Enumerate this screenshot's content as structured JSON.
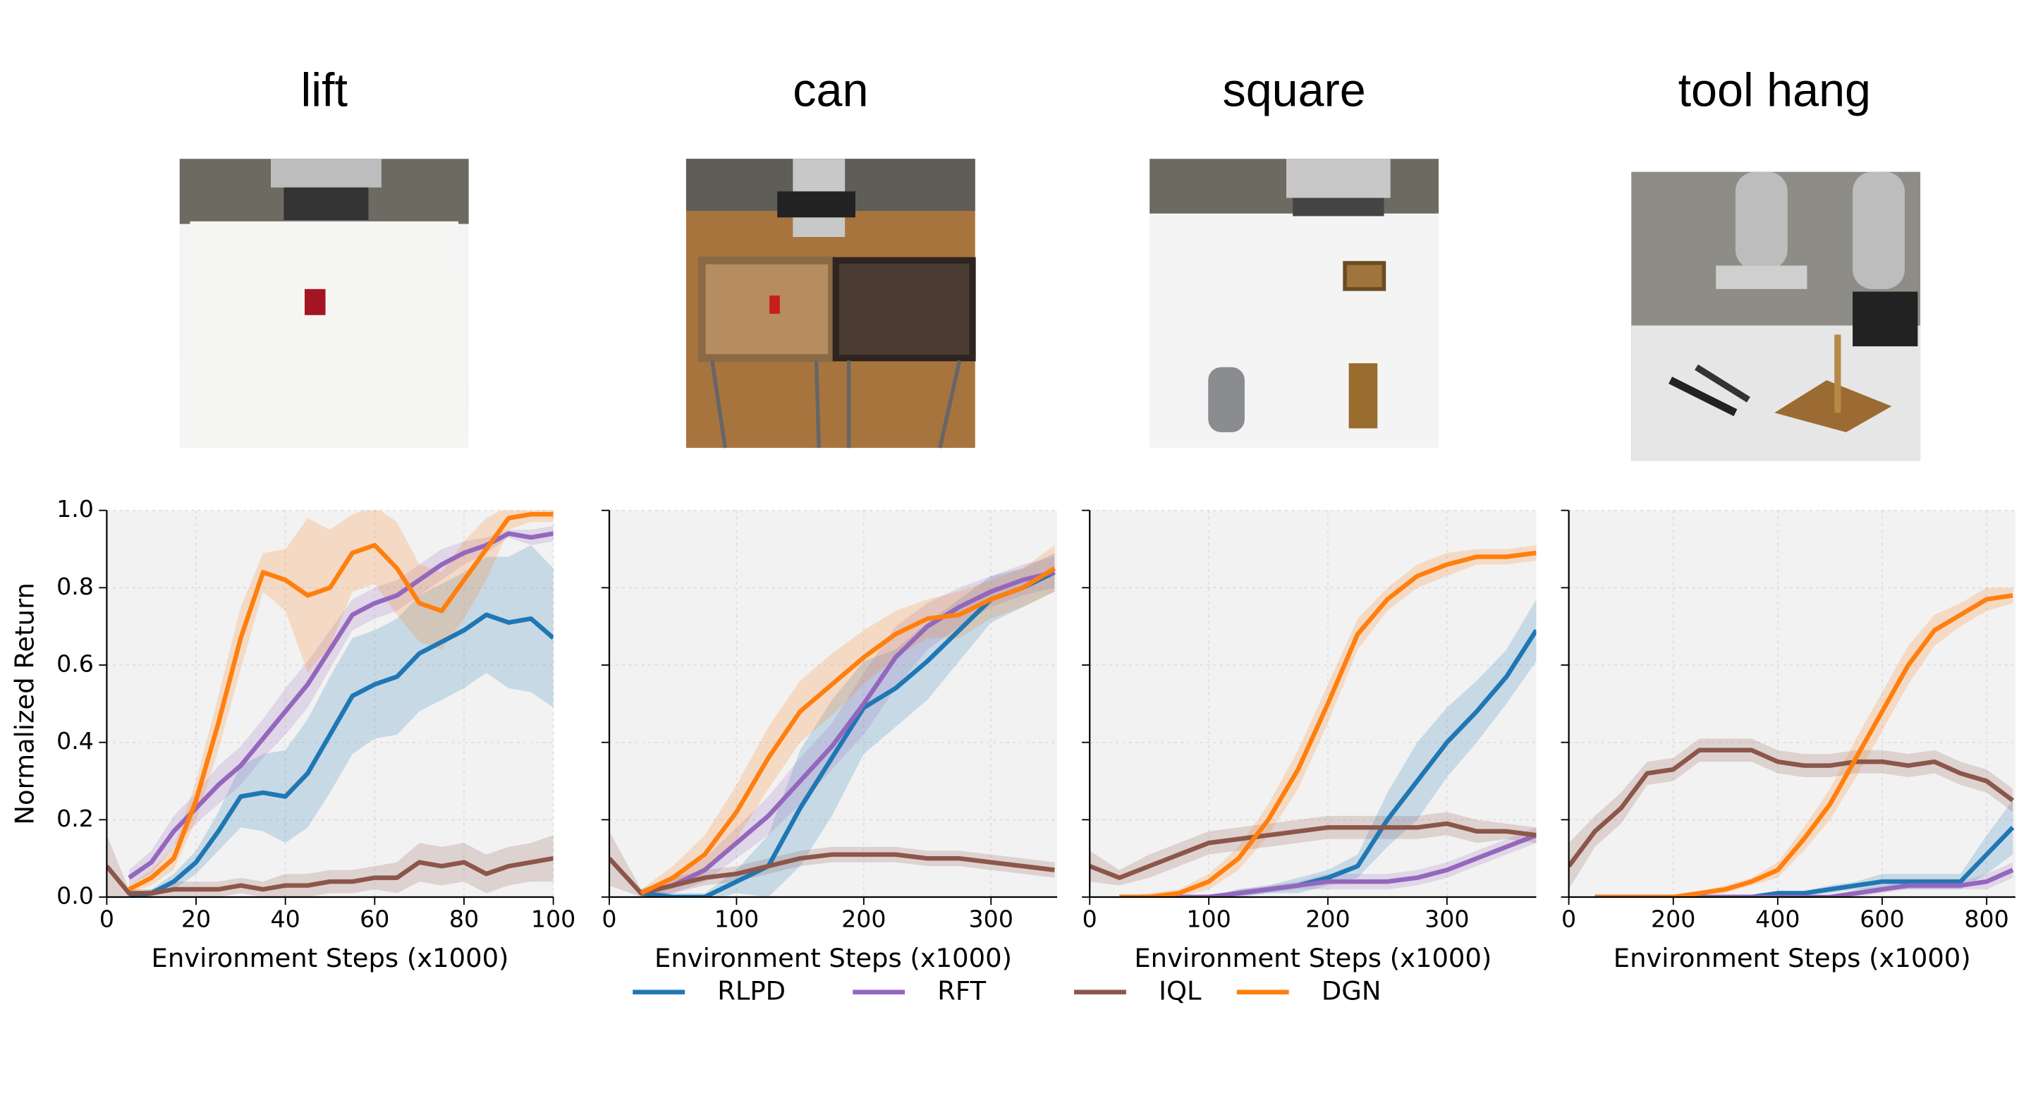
{
  "chart_data": [
    {
      "type": "line",
      "title": "lift",
      "xlabel": "Environment Steps (x1000)",
      "ylabel": "Normalized Return",
      "x": [
        0,
        5,
        10,
        15,
        20,
        25,
        30,
        35,
        40,
        45,
        50,
        55,
        60,
        65,
        70,
        75,
        80,
        85,
        90,
        95,
        100
      ],
      "xlim": [
        0,
        100
      ],
      "xticks": [
        0,
        20,
        40,
        60,
        80,
        100
      ],
      "ylim": [
        0,
        1
      ],
      "yticks": [
        {
          "value": 0,
          "label": "0.0"
        },
        {
          "value": 0.2,
          "label": "0.2"
        },
        {
          "value": 0.4,
          "label": "0.4"
        },
        {
          "value": 0.6,
          "label": "0.6"
        },
        {
          "value": 0.8,
          "label": "0.8"
        },
        {
          "value": 1,
          "label": "1.0"
        }
      ],
      "grid": true,
      "series": [
        {
          "name": "RLPD",
          "color": "#1f77b4",
          "values": [
            null,
            0.0,
            0.01,
            0.04,
            0.09,
            0.17,
            0.26,
            0.27,
            0.26,
            0.32,
            0.42,
            0.52,
            0.55,
            0.57,
            0.63,
            0.66,
            0.69,
            0.73,
            0.71,
            0.72,
            0.67
          ],
          "errors": [
            null,
            0.01,
            0.01,
            0.02,
            0.03,
            0.05,
            0.08,
            0.1,
            0.12,
            0.14,
            0.15,
            0.15,
            0.14,
            0.15,
            0.15,
            0.15,
            0.15,
            0.15,
            0.17,
            0.19,
            0.18
          ]
        },
        {
          "name": "RFT",
          "color": "#9467bd",
          "values": [
            null,
            0.05,
            0.09,
            0.17,
            0.23,
            0.29,
            0.34,
            0.41,
            0.48,
            0.55,
            0.64,
            0.73,
            0.76,
            0.78,
            0.82,
            0.86,
            0.89,
            0.91,
            0.94,
            0.93,
            0.94
          ],
          "errors": [
            null,
            0.02,
            0.03,
            0.04,
            0.04,
            0.05,
            0.05,
            0.05,
            0.06,
            0.06,
            0.05,
            0.04,
            0.04,
            0.04,
            0.04,
            0.04,
            0.03,
            0.02,
            0.01,
            0.02,
            0.02
          ]
        },
        {
          "name": "IQL",
          "color": "#8c564b",
          "values": [
            0.08,
            0.01,
            0.01,
            0.02,
            0.02,
            0.02,
            0.03,
            0.02,
            0.03,
            0.03,
            0.04,
            0.04,
            0.05,
            0.05,
            0.09,
            0.08,
            0.09,
            0.06,
            0.08,
            0.09,
            0.1
          ],
          "errors": [
            0.08,
            0.01,
            0.01,
            0.02,
            0.02,
            0.02,
            0.02,
            0.02,
            0.03,
            0.03,
            0.03,
            0.03,
            0.03,
            0.04,
            0.05,
            0.05,
            0.05,
            0.05,
            0.05,
            0.05,
            0.06
          ]
        },
        {
          "name": "DGN",
          "color": "#ff7f0e",
          "values": [
            null,
            0.02,
            0.05,
            0.1,
            0.25,
            0.45,
            0.67,
            0.84,
            0.82,
            0.78,
            0.8,
            0.89,
            0.91,
            0.85,
            0.76,
            0.74,
            0.82,
            0.9,
            0.98,
            0.99,
            0.99
          ],
          "errors": [
            null,
            0.01,
            0.02,
            0.03,
            0.05,
            0.07,
            0.08,
            0.05,
            0.08,
            0.2,
            0.15,
            0.1,
            0.1,
            0.12,
            0.1,
            0.1,
            0.1,
            0.08,
            0.03,
            0.02,
            0.02
          ]
        }
      ]
    },
    {
      "type": "line",
      "title": "can",
      "xlabel": "Environment Steps (x1000)",
      "x": [
        0,
        25,
        50,
        75,
        100,
        125,
        150,
        175,
        200,
        225,
        250,
        275,
        300,
        325,
        350
      ],
      "xlim": [
        0,
        352
      ],
      "xticks": [
        0,
        100,
        200,
        300
      ],
      "ylim": [
        0,
        1
      ],
      "yticks": [
        0,
        0.2,
        0.4,
        0.6,
        0.8,
        1
      ],
      "grid": true,
      "series": [
        {
          "name": "RLPD",
          "color": "#1f77b4",
          "values": [
            null,
            0.01,
            0.0,
            0.0,
            0.04,
            0.08,
            0.23,
            0.36,
            0.49,
            0.54,
            0.61,
            0.69,
            0.77,
            0.8,
            0.84
          ],
          "errors": [
            null,
            0.01,
            0.01,
            0.01,
            0.03,
            0.08,
            0.15,
            0.15,
            0.12,
            0.1,
            0.1,
            0.08,
            0.06,
            0.05,
            0.05
          ]
        },
        {
          "name": "RFT",
          "color": "#9467bd",
          "values": [
            null,
            0.01,
            0.03,
            0.07,
            0.14,
            0.21,
            0.3,
            0.39,
            0.5,
            0.62,
            0.7,
            0.75,
            0.79,
            0.82,
            0.84
          ],
          "errors": [
            null,
            0.01,
            0.02,
            0.03,
            0.04,
            0.05,
            0.06,
            0.06,
            0.08,
            0.08,
            0.06,
            0.05,
            0.04,
            0.04,
            0.04
          ]
        },
        {
          "name": "IQL",
          "color": "#8c564b",
          "values": [
            0.1,
            0.01,
            0.03,
            0.05,
            0.06,
            0.08,
            0.1,
            0.11,
            0.11,
            0.11,
            0.1,
            0.1,
            0.09,
            0.08,
            0.07
          ],
          "errors": [
            0.07,
            0.01,
            0.02,
            0.02,
            0.02,
            0.02,
            0.02,
            0.02,
            0.02,
            0.02,
            0.02,
            0.02,
            0.02,
            0.02,
            0.02
          ]
        },
        {
          "name": "DGN",
          "color": "#ff7f0e",
          "values": [
            null,
            0.01,
            0.05,
            0.11,
            0.22,
            0.36,
            0.48,
            0.55,
            0.62,
            0.68,
            0.72,
            0.73,
            0.77,
            0.8,
            0.85
          ],
          "errors": [
            null,
            0.01,
            0.03,
            0.05,
            0.07,
            0.08,
            0.08,
            0.08,
            0.07,
            0.06,
            0.05,
            0.06,
            0.05,
            0.05,
            0.06
          ]
        }
      ]
    },
    {
      "type": "line",
      "title": "square",
      "xlabel": "Environment Steps (x1000)",
      "x": [
        0,
        25,
        50,
        75,
        100,
        125,
        150,
        175,
        200,
        225,
        250,
        275,
        300,
        325,
        350,
        375
      ],
      "xlim": [
        0,
        375
      ],
      "xticks": [
        0,
        100,
        200,
        300
      ],
      "ylim": [
        0,
        1
      ],
      "yticks": [
        0,
        0.2,
        0.4,
        0.6,
        0.8,
        1
      ],
      "grid": true,
      "series": [
        {
          "name": "RLPD",
          "color": "#1f77b4",
          "values": [
            null,
            0,
            0,
            0,
            0,
            0.01,
            0.02,
            0.03,
            0.05,
            0.08,
            0.2,
            0.3,
            0.4,
            0.48,
            0.57,
            0.69
          ],
          "errors": [
            null,
            0,
            0,
            0,
            0,
            0.01,
            0.01,
            0.02,
            0.02,
            0.03,
            0.07,
            0.1,
            0.09,
            0.08,
            0.07,
            0.08
          ]
        },
        {
          "name": "RFT",
          "color": "#9467bd",
          "values": [
            null,
            0,
            0,
            0,
            0,
            0.01,
            0.02,
            0.03,
            0.04,
            0.04,
            0.04,
            0.05,
            0.07,
            0.1,
            0.13,
            0.16
          ],
          "errors": [
            null,
            0,
            0,
            0,
            0,
            0.01,
            0.01,
            0.01,
            0.02,
            0.02,
            0.02,
            0.02,
            0.02,
            0.02,
            0.02,
            0.02
          ]
        },
        {
          "name": "IQL",
          "color": "#8c564b",
          "values": [
            0.08,
            0.05,
            0.08,
            0.11,
            0.14,
            0.15,
            0.16,
            0.17,
            0.18,
            0.18,
            0.18,
            0.18,
            0.19,
            0.17,
            0.17,
            0.16
          ],
          "errors": [
            0.04,
            0.02,
            0.03,
            0.03,
            0.03,
            0.03,
            0.03,
            0.03,
            0.03,
            0.03,
            0.03,
            0.03,
            0.03,
            0.03,
            0.02,
            0.02
          ]
        },
        {
          "name": "DGN",
          "color": "#ff7f0e",
          "values": [
            null,
            0,
            0,
            0.01,
            0.04,
            0.1,
            0.2,
            0.33,
            0.5,
            0.68,
            0.77,
            0.83,
            0.86,
            0.88,
            0.88,
            0.89
          ],
          "errors": [
            null,
            0,
            0.01,
            0.01,
            0.02,
            0.03,
            0.04,
            0.05,
            0.05,
            0.04,
            0.03,
            0.03,
            0.03,
            0.02,
            0.02,
            0.02
          ]
        }
      ]
    },
    {
      "type": "line",
      "title": "tool hang",
      "xlabel": "Environment Steps (x1000)",
      "x": [
        0,
        50,
        100,
        150,
        200,
        250,
        300,
        350,
        400,
        450,
        500,
        550,
        600,
        650,
        700,
        750,
        800,
        850
      ],
      "xlim": [
        0,
        855
      ],
      "xticks": [
        0,
        200,
        400,
        600,
        800
      ],
      "ylim": [
        0,
        1
      ],
      "yticks": [
        0,
        0.2,
        0.4,
        0.6,
        0.8,
        1
      ],
      "grid": true,
      "series": [
        {
          "name": "RLPD",
          "color": "#1f77b4",
          "values": [
            null,
            0,
            0,
            0,
            0,
            0,
            0,
            0,
            0.01,
            0.01,
            0.02,
            0.03,
            0.04,
            0.04,
            0.04,
            0.04,
            0.11,
            0.18
          ],
          "errors": [
            null,
            0,
            0,
            0,
            0,
            0,
            0,
            0,
            0.005,
            0.005,
            0.01,
            0.01,
            0.02,
            0.02,
            0.02,
            0.02,
            0.05,
            0.07
          ]
        },
        {
          "name": "RFT",
          "color": "#9467bd",
          "values": [
            null,
            0,
            0,
            0,
            0,
            0,
            0,
            0,
            0,
            0,
            0,
            0.01,
            0.02,
            0.03,
            0.03,
            0.03,
            0.04,
            0.07
          ],
          "errors": [
            null,
            0,
            0,
            0,
            0,
            0,
            0,
            0,
            0,
            0,
            0,
            0.01,
            0.01,
            0.01,
            0.01,
            0.01,
            0.02,
            0.02
          ]
        },
        {
          "name": "IQL",
          "color": "#8c564b",
          "values": [
            0.08,
            0.17,
            0.23,
            0.32,
            0.33,
            0.38,
            0.38,
            0.38,
            0.35,
            0.34,
            0.34,
            0.35,
            0.35,
            0.34,
            0.35,
            0.32,
            0.3,
            0.25
          ],
          "errors": [
            0.06,
            0.04,
            0.04,
            0.03,
            0.03,
            0.03,
            0.03,
            0.03,
            0.03,
            0.03,
            0.03,
            0.03,
            0.03,
            0.03,
            0.03,
            0.03,
            0.03,
            0.03
          ]
        },
        {
          "name": "DGN",
          "color": "#ff7f0e",
          "values": [
            null,
            0,
            0,
            0,
            0,
            0.01,
            0.02,
            0.04,
            0.07,
            0.15,
            0.24,
            0.36,
            0.48,
            0.6,
            0.69,
            0.73,
            0.77,
            0.78
          ],
          "errors": [
            null,
            0,
            0,
            0,
            0,
            0.005,
            0.01,
            0.01,
            0.02,
            0.03,
            0.04,
            0.05,
            0.05,
            0.05,
            0.04,
            0.03,
            0.03,
            0.02
          ]
        }
      ]
    }
  ]
}
